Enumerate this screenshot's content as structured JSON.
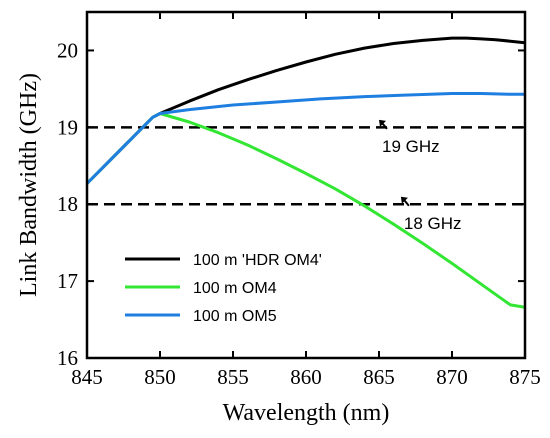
{
  "chart_data": {
    "type": "line",
    "title": "",
    "xlabel": "Wavelength (nm)",
    "ylabel": "Link Bandwidth (GHz)",
    "xlim": [
      845,
      875
    ],
    "ylim": [
      16,
      20.5
    ],
    "xticks": [
      845,
      850,
      855,
      860,
      865,
      870,
      875
    ],
    "yticks": [
      16,
      17,
      18,
      19,
      20
    ],
    "grid": false,
    "legend_position": "lower-left",
    "series": [
      {
        "name": "100 m 'HDR OM4'",
        "color": "#000000",
        "x": [
          845,
          849.5,
          850,
          852,
          854,
          856,
          858,
          860,
          862,
          864,
          866,
          868,
          870,
          871,
          872,
          873,
          874,
          875
        ],
        "y": [
          18.27,
          19.13,
          19.18,
          19.34,
          19.49,
          19.62,
          19.74,
          19.85,
          19.95,
          20.03,
          20.09,
          20.13,
          20.16,
          20.16,
          20.15,
          20.14,
          20.12,
          20.1
        ]
      },
      {
        "name": "100 m OM4",
        "color": "#33e633",
        "x": [
          845,
          849.5,
          850,
          852,
          854,
          856,
          858,
          860,
          862,
          864,
          866,
          868,
          870,
          872,
          874,
          875
        ],
        "y": [
          18.27,
          19.13,
          19.18,
          19.07,
          18.93,
          18.77,
          18.59,
          18.4,
          18.2,
          17.98,
          17.74,
          17.49,
          17.23,
          16.96,
          16.69,
          16.66
        ]
      },
      {
        "name": "100 m OM5",
        "color": "#1f7fe0",
        "x": [
          845,
          849.5,
          850,
          852,
          855,
          858,
          861,
          864,
          867,
          870,
          872,
          874,
          875
        ],
        "y": [
          18.27,
          19.13,
          19.18,
          19.23,
          19.29,
          19.33,
          19.37,
          19.4,
          19.42,
          19.44,
          19.44,
          19.43,
          19.43
        ]
      }
    ],
    "reference_lines": [
      {
        "y": 19,
        "style": "dashed",
        "color": "#000000"
      },
      {
        "y": 18,
        "style": "dashed",
        "color": "#000000"
      }
    ],
    "annotations": [
      {
        "text": "19 GHz",
        "x": 865,
        "y": 18.85
      },
      {
        "text": "18 GHz",
        "x": 866.5,
        "y": 17.85
      }
    ]
  }
}
